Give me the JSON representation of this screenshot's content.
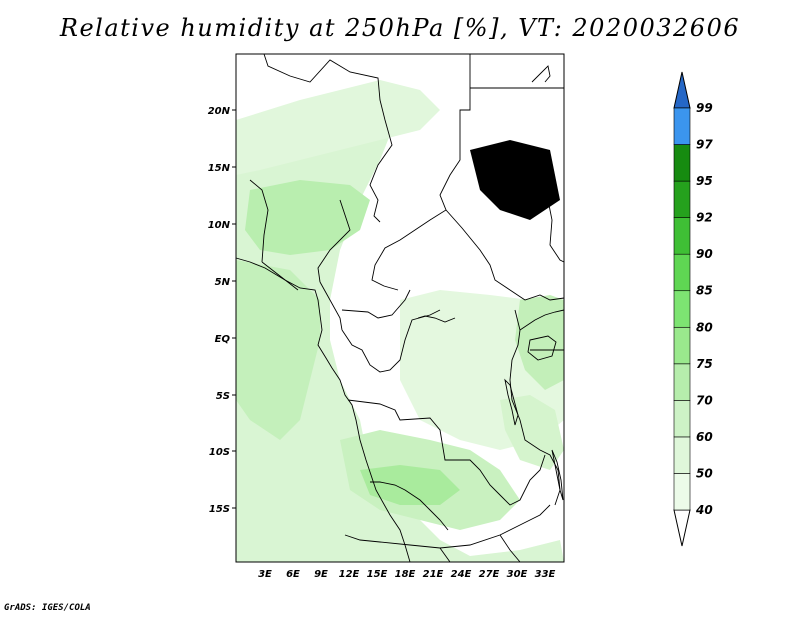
{
  "title": "Relative humidity at 250hPa [%], VT: 2020032606",
  "credit": "GrADS: IGES/COLA",
  "map": {
    "lat_labels": [
      "20N",
      "15N",
      "10N",
      "5N",
      "EQ",
      "5S",
      "10S",
      "15S"
    ],
    "lon_labels": [
      "3E",
      "6E",
      "9E",
      "12E",
      "15E",
      "18E",
      "21E",
      "24E",
      "27E",
      "30E",
      "33E"
    ]
  },
  "colorbar": {
    "levels": [
      "40",
      "50",
      "60",
      "70",
      "75",
      "80",
      "85",
      "90",
      "92",
      "95",
      "97",
      "99"
    ],
    "colors": [
      "#ecfbe9",
      "#dff7da",
      "#cdf2c6",
      "#b6edac",
      "#9ae98d",
      "#7de472",
      "#5fd653",
      "#3fbf35",
      "#25a11d",
      "#168b10",
      "#3b95ee",
      "#2e73d9",
      "#1f5bbf"
    ],
    "below_color": "#ffffff",
    "above_color": "#2567c6"
  }
}
